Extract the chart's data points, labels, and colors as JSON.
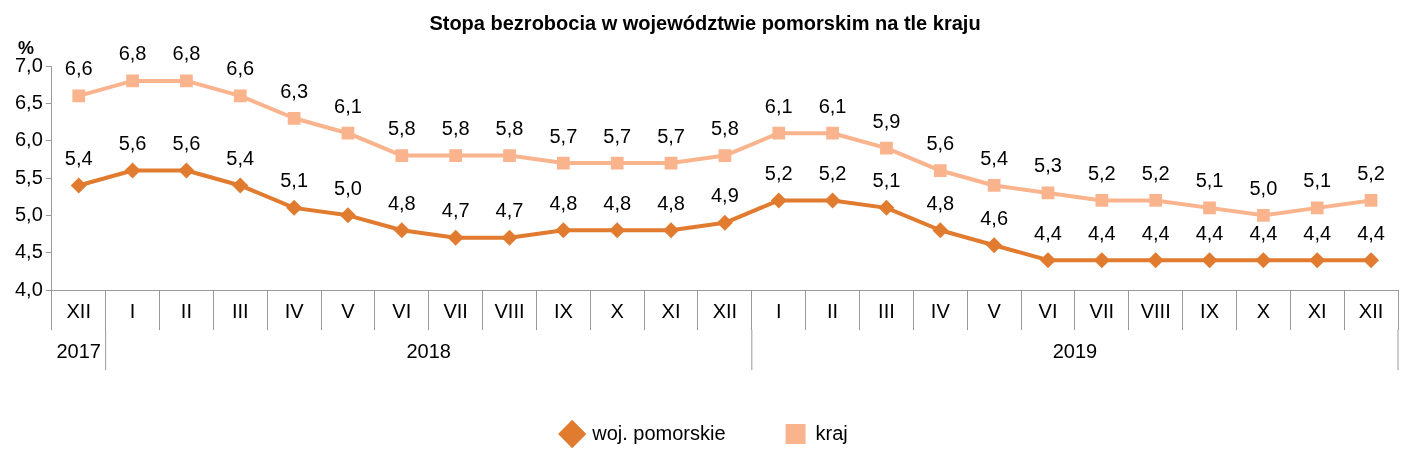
{
  "chart_data": {
    "type": "line",
    "title": "Stopa bezrobocia w województwie pomorskim na tle kraju",
    "ylabel": "%",
    "categories": [
      "XII",
      "I",
      "II",
      "III",
      "IV",
      "V",
      "VI",
      "VII",
      "VIII",
      "IX",
      "X",
      "XI",
      "XII",
      "I",
      "II",
      "III",
      "IV",
      "V",
      "VI",
      "VII",
      "VIII",
      "IX",
      "X",
      "XI",
      "XII"
    ],
    "series": [
      {
        "name": "woj. pomorskie",
        "color": "#e07b30",
        "marker": "diamond",
        "values": [
          5.4,
          5.6,
          5.6,
          5.4,
          5.1,
          5.0,
          4.8,
          4.7,
          4.7,
          4.8,
          4.8,
          4.8,
          4.9,
          5.2,
          5.2,
          5.1,
          4.8,
          4.6,
          4.4,
          4.4,
          4.4,
          4.4,
          4.4,
          4.4,
          4.4
        ],
        "value_labels": [
          "5,4",
          "5,6",
          "5,6",
          "5,4",
          "5,1",
          "5,0",
          "4,8",
          "4,7",
          "4,7",
          "4,8",
          "4,8",
          "4,8",
          "4,9",
          "5,2",
          "5,2",
          "5,1",
          "4,8",
          "4,6",
          "4,4",
          "4,4",
          "4,4",
          "4,4",
          "4,4",
          "4,4",
          "4,4"
        ]
      },
      {
        "name": "kraj",
        "color": "#f9b48e",
        "marker": "square",
        "values": [
          6.6,
          6.8,
          6.8,
          6.6,
          6.3,
          6.1,
          5.8,
          5.8,
          5.8,
          5.7,
          5.7,
          5.7,
          5.8,
          6.1,
          6.1,
          5.9,
          5.6,
          5.4,
          5.3,
          5.2,
          5.2,
          5.1,
          5.0,
          5.1,
          5.2
        ],
        "value_labels": [
          "6,6",
          "6,8",
          "6,8",
          "6,6",
          "6,3",
          "6,1",
          "5,8",
          "5,8",
          "5,8",
          "5,7",
          "5,7",
          "5,7",
          "5,8",
          "6,1",
          "6,1",
          "5,9",
          "5,6",
          "5,4",
          "5,3",
          "5,2",
          "5,2",
          "5,1",
          "5,0",
          "5,1",
          "5,2"
        ]
      }
    ],
    "ylim": [
      4,
      7
    ],
    "yticks": [
      {
        "value": 4,
        "label": "4,0"
      },
      {
        "value": 4.5,
        "label": "4,5"
      },
      {
        "value": 5,
        "label": "5,0"
      },
      {
        "value": 5.5,
        "label": "5,5"
      },
      {
        "value": 6,
        "label": "6,0"
      },
      {
        "value": 6.5,
        "label": "6,5"
      },
      {
        "value": 7,
        "label": "7,0"
      }
    ],
    "annotations": [
      "2017",
      "2018",
      "2019"
    ],
    "grid": false,
    "legend": "bottom",
    "line_style": "solid"
  }
}
